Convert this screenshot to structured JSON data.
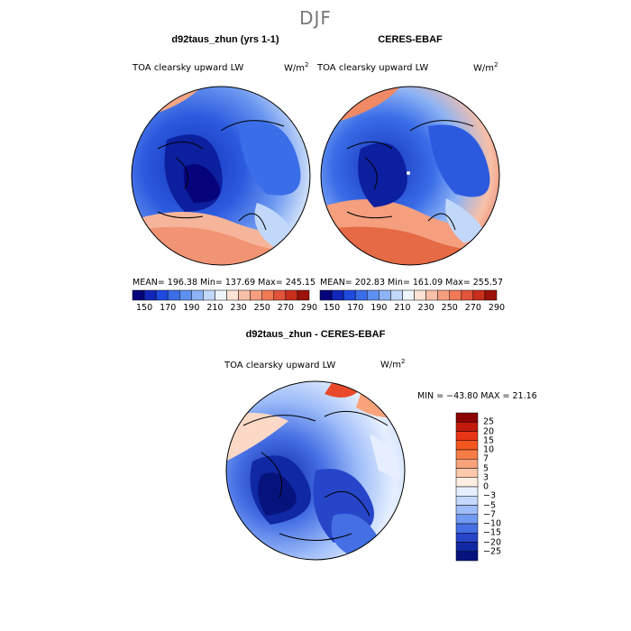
{
  "figure": {
    "title": "DJF"
  },
  "panels": [
    {
      "title": "d92taus_zhun (yrs 1-1)",
      "variable": "TOA clearsky upward LW",
      "units_base": "W/m",
      "units_exp": "2",
      "stats": "MEAN= 196.38   Min= 137.69   Max= 245.15"
    },
    {
      "title": "CERES-EBAF",
      "variable": "TOA clearsky upward LW",
      "units_base": "W/m",
      "units_exp": "2",
      "stats": "MEAN= 202.83   Min= 161.09   Max= 255.57"
    }
  ],
  "colorbar": {
    "ticks": [
      "150",
      "170",
      "190",
      "210",
      "230",
      "250",
      "270",
      "290"
    ],
    "colors": [
      "#07037a",
      "#1226b9",
      "#1f4ae0",
      "#3a6de8",
      "#5d8ff0",
      "#8db3f5",
      "#c1d8fa",
      "#eef5fb",
      "#fbe3d5",
      "#f8c0a8",
      "#f59f7e",
      "#f07a55",
      "#e2533a",
      "#c92e1d",
      "#9b1208"
    ]
  },
  "difference": {
    "title": "d92taus_zhun - CERES-EBAF",
    "variable": "TOA clearsky upward LW",
    "units_base": "W/m",
    "units_exp": "2",
    "stats": "MIN = −43.80  MAX =   21.16",
    "levels": [
      "25",
      "20",
      "15",
      "10",
      "7",
      "5",
      "3",
      "0",
      "−3",
      "−5",
      "−7",
      "−10",
      "−15",
      "−20",
      "−25"
    ],
    "colors": [
      "#8b0000",
      "#c21a0b",
      "#e83417",
      "#f5561f",
      "#f77b44",
      "#f9a37a",
      "#fcc9ad",
      "#fdeee2",
      "#e6efff",
      "#c4d9fd",
      "#9dbcf9",
      "#7099f2",
      "#456fe4",
      "#2745c8",
      "#1028a4",
      "#07137d"
    ]
  }
}
